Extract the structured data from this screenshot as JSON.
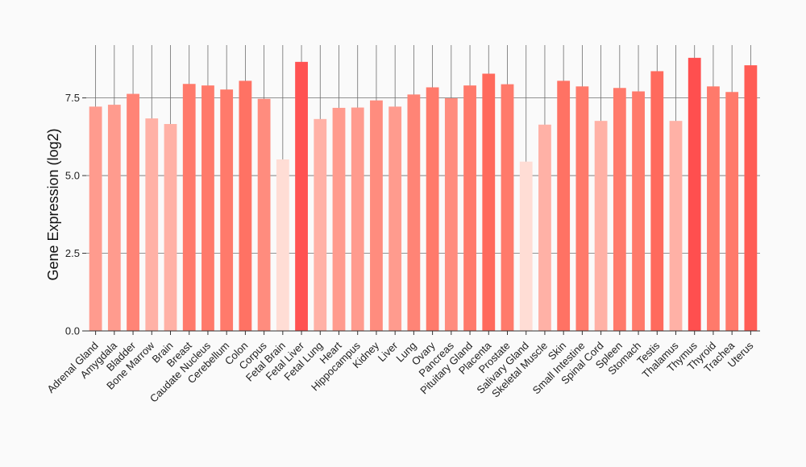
{
  "chart_data": {
    "type": "bar",
    "title": "",
    "xlabel": "",
    "ylabel": "Gene Expression (log2)",
    "ylim": [
      0,
      9.2
    ],
    "yticks": [
      0,
      2.5,
      5,
      7.5
    ],
    "ytick_labels": [
      "0.0",
      "2.5",
      "5.0",
      "7.5"
    ],
    "categories": [
      "Adrenal Gland",
      "Amygdala",
      "Bladder",
      "Bone Marrow",
      "Brain",
      "Breast",
      "Caudate Nucleus",
      "Cerebellum",
      "Colon",
      "Corpus",
      "Fetal Brain",
      "Fetal Liver",
      "Fetal Lung",
      "Heart",
      "Hippocampus",
      "Kidney",
      "Liver",
      "Lung",
      "Ovary",
      "Pancreas",
      "Pituitary Gland",
      "Placenta",
      "Prostate",
      "Salivary Gland",
      "Skeletal Muscle",
      "Skin",
      "Small Intestine",
      "Spinal Cord",
      "Spleen",
      "Stomach",
      "Testis",
      "Thalamus",
      "Thymus",
      "Thyroid",
      "Trachea",
      "Uterus"
    ],
    "values": [
      7.22,
      7.28,
      7.63,
      6.84,
      6.66,
      7.95,
      7.9,
      7.77,
      8.05,
      7.47,
      5.52,
      8.66,
      6.82,
      7.18,
      7.19,
      7.42,
      7.22,
      7.61,
      7.84,
      7.49,
      7.9,
      8.28,
      7.94,
      5.45,
      6.64,
      8.05,
      7.87,
      6.76,
      7.82,
      7.71,
      8.36,
      6.76,
      8.79,
      7.87,
      7.69,
      8.55
    ],
    "colors": [
      "#ff9b8e",
      "#ff9b8e",
      "#ff8476",
      "#ffb1a6",
      "#ffb1a6",
      "#ff7a6b",
      "#ff7a6b",
      "#ff7a6b",
      "#ff7264",
      "#ff8c7e",
      "#ffddd5",
      "#ff5252",
      "#ffb1a6",
      "#ff9b8e",
      "#ff9b8e",
      "#ff8c7e",
      "#ff9b8e",
      "#ff8476",
      "#ff7a6b",
      "#ff8c7e",
      "#ff7a6b",
      "#ff6a5d",
      "#ff7a6b",
      "#ffddd5",
      "#ffb1a6",
      "#ff7264",
      "#ff7a6b",
      "#ffb1a6",
      "#ff7a6b",
      "#ff7a6b",
      "#ff6a5d",
      "#ffb1a6",
      "#ff4f4f",
      "#ff7a6b",
      "#ff7a6b",
      "#ff5c55"
    ],
    "grid": true,
    "gridline_color": "#6f6f6f",
    "legend": "none"
  }
}
